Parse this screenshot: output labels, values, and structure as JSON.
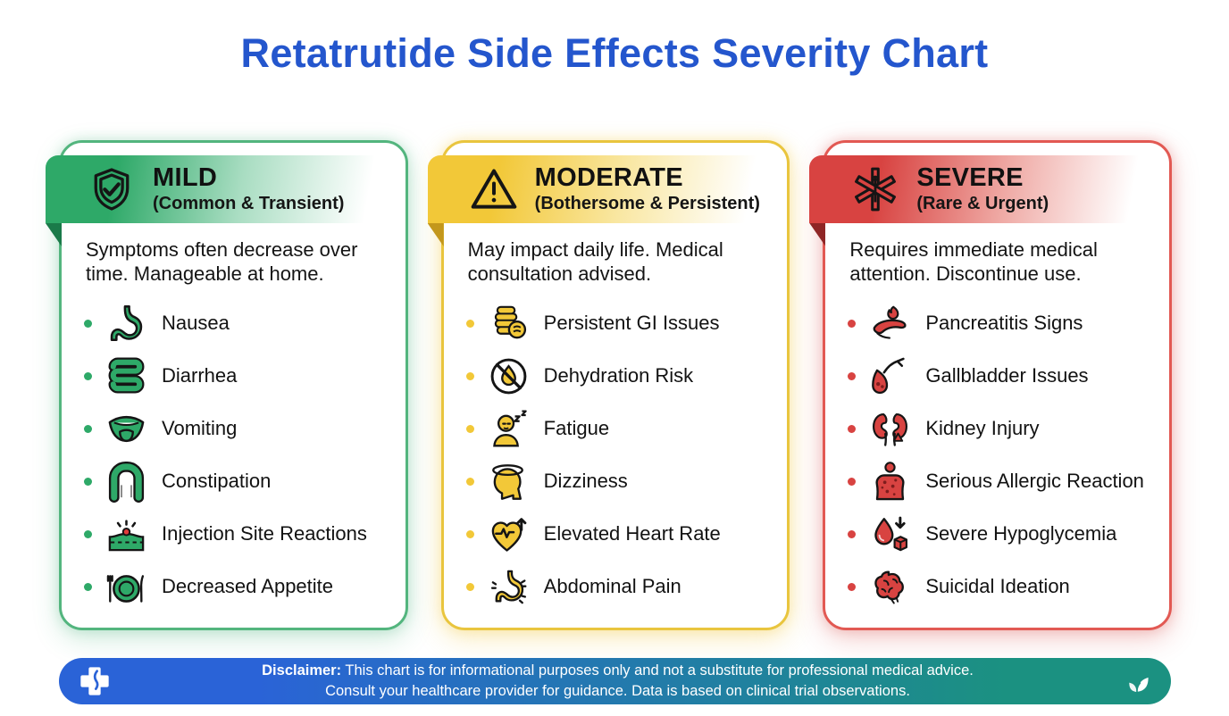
{
  "title": "Retatrutide Side Effects Severity Chart",
  "title_color": "#2456cd",
  "columns": [
    {
      "id": "mild",
      "label": "MILD",
      "sublabel": "(Common & Transient)",
      "description": "Symptoms often decrease over time. Manageable at home.",
      "header_icon": "shield-check-icon",
      "colors": {
        "accent": "#2ea968",
        "banner_mid": "#a9ddc2",
        "border": "#53b57e",
        "fold": "#1a7a49",
        "glow": "rgba(46,169,104,0.22)"
      },
      "items": [
        {
          "icon": "stomach-icon",
          "label": "Nausea"
        },
        {
          "icon": "intestine-icon",
          "label": "Diarrhea"
        },
        {
          "icon": "mouth-tongue-icon",
          "label": "Vomiting"
        },
        {
          "icon": "colon-icon",
          "label": "Constipation"
        },
        {
          "icon": "skin-injection-icon",
          "label": "Injection Site Reactions"
        },
        {
          "icon": "plate-cutlery-icon",
          "label": "Decreased Appetite"
        }
      ]
    },
    {
      "id": "moderate",
      "label": "MODERATE",
      "sublabel": "(Bothersome & Persistent)",
      "description": "May impact daily life. Medical consultation advised.",
      "header_icon": "warning-triangle-icon",
      "colors": {
        "accent": "#f2c838",
        "banner_mid": "#f9e7a2",
        "border": "#e9c53e",
        "fold": "#c3971c",
        "glow": "rgba(242,200,56,0.30)"
      },
      "items": [
        {
          "icon": "gi-intestine-icon",
          "label": "Persistent GI Issues"
        },
        {
          "icon": "no-water-icon",
          "label": "Dehydration Risk"
        },
        {
          "icon": "fatigue-person-icon",
          "label": "Fatigue"
        },
        {
          "icon": "dizziness-head-icon",
          "label": "Dizziness"
        },
        {
          "icon": "heart-rate-up-icon",
          "label": "Elevated Heart Rate"
        },
        {
          "icon": "stomach-pain-icon",
          "label": "Abdominal Pain"
        }
      ]
    },
    {
      "id": "severe",
      "label": "SEVERE",
      "sublabel": "(Rare & Urgent)",
      "description": "Requires immediate medical attention. Discontinue use.",
      "header_icon": "star-of-life-icon",
      "colors": {
        "accent": "#d84341",
        "banner_mid": "#efa9a4",
        "border": "#e25953",
        "fold": "#8f2626",
        "glow": "rgba(216,67,65,0.25)"
      },
      "items": [
        {
          "icon": "pancreas-icon",
          "label": "Pancreatitis Signs"
        },
        {
          "icon": "gallbladder-icon",
          "label": "Gallbladder Issues"
        },
        {
          "icon": "kidneys-icon",
          "label": "Kidney Injury"
        },
        {
          "icon": "allergic-body-icon",
          "label": "Serious Allergic Reaction"
        },
        {
          "icon": "hypoglycemia-icon",
          "label": "Severe Hypoglycemia"
        },
        {
          "icon": "brain-icon",
          "label": "Suicidal Ideation"
        }
      ]
    }
  ],
  "disclaimer": {
    "bold": "Disclaimer:",
    "line1": "This chart is for informational purposes only and not a substitute for professional medical advice.",
    "line2": "Consult your healthcare provider for guidance. Data is based on clinical trial observations.",
    "left_icon": "medical-cross-icon",
    "right_icon": "leaf-icon",
    "gradient_from": "#2a63d7",
    "gradient_to": "#1b9181"
  }
}
